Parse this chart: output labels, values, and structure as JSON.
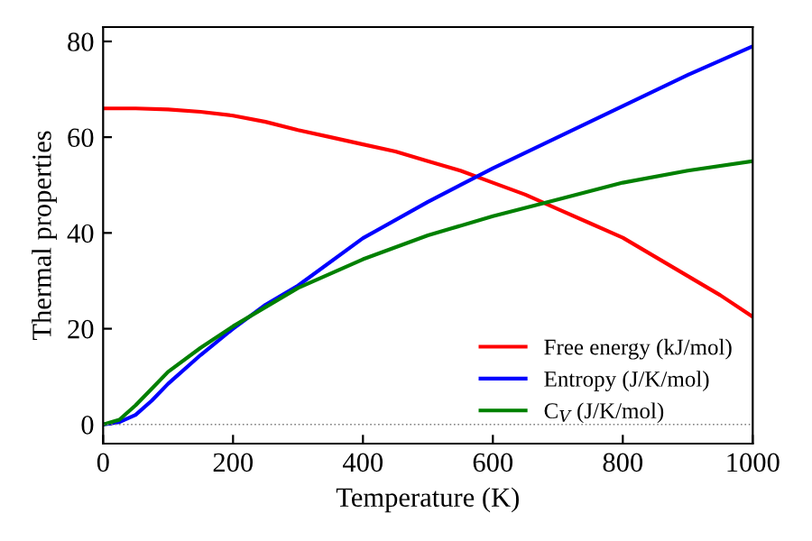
{
  "chart_data": {
    "type": "line",
    "xlabel": "Temperature (K)",
    "ylabel": "Thermal properties",
    "xlim": [
      0,
      1000
    ],
    "ylim": [
      -4,
      83
    ],
    "xticks": [
      0,
      200,
      400,
      600,
      800,
      1000
    ],
    "yticks": [
      0,
      20,
      40,
      60,
      80
    ],
    "grid": false,
    "legend": "bottom right",
    "line_style": "solid",
    "marker": "none",
    "ref_lines": [
      {
        "axis": "y",
        "value": 0,
        "color": "#808080",
        "line_style": "dotted"
      }
    ],
    "series": [
      {
        "name": "Free energy (kJ/mol)",
        "color": "#ff0000",
        "x": [
          0,
          50,
          100,
          150,
          200,
          250,
          300,
          350,
          400,
          450,
          500,
          550,
          600,
          650,
          700,
          750,
          800,
          850,
          900,
          950,
          1000
        ],
        "values": [
          66,
          66,
          65.8,
          65.3,
          64.5,
          63.2,
          61.5,
          60,
          58.5,
          57,
          55,
          53,
          50.5,
          48,
          45,
          42,
          39,
          35,
          31,
          27,
          22.5
        ]
      },
      {
        "name": "Entropy (J/K/mol)",
        "color": "#0000ff",
        "x": [
          0,
          25,
          50,
          75,
          100,
          150,
          200,
          250,
          300,
          400,
          500,
          600,
          700,
          800,
          900,
          1000
        ],
        "values": [
          0,
          0.5,
          2,
          5,
          8.5,
          14.5,
          20,
          25,
          29,
          38.9,
          46.5,
          53.5,
          60,
          66.5,
          73,
          79
        ]
      },
      {
        "name": "C$_{V}$ (J/K/mol)",
        "color": "#008000",
        "x": [
          0,
          25,
          50,
          75,
          100,
          150,
          200,
          300,
          400,
          500,
          600,
          700,
          800,
          900,
          1000
        ],
        "values": [
          0,
          1,
          4,
          7.5,
          11,
          16,
          20.5,
          28.5,
          34.5,
          39.5,
          43.5,
          47,
          50.5,
          53,
          55
        ]
      }
    ]
  }
}
